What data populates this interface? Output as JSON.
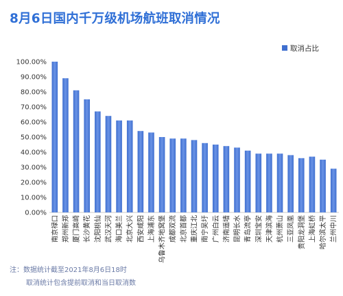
{
  "title": "8月6日国内千万级机场航班取消情况",
  "notes": [
    "注：数据统计截至2021年8月6日18时",
    "取消统计包含提前取消和当日取消数"
  ],
  "colors": {
    "title": "#2f6fd6",
    "bar": "#3f6fcf",
    "bar_light": "#6a93e6",
    "axis_text": "#333333",
    "note": "#6a7aa6"
  },
  "chart_data": {
    "type": "bar",
    "title": "8月6日国内千万级机场航班取消情况",
    "xlabel": "",
    "ylabel": "",
    "ylim": [
      0,
      1
    ],
    "yticks": [
      "0.00%",
      "10.00%",
      "20.00%",
      "30.00%",
      "40.00%",
      "50.00%",
      "60.00%",
      "70.00%",
      "80.00%",
      "90.00%",
      "100.00%"
    ],
    "grid": false,
    "legend": {
      "position": "top-right"
    },
    "categories": [
      "南京禄口",
      "郑州新郑",
      "厦门高崎",
      "长沙黄花",
      "沈阳桃仙",
      "武汉天河",
      "海口美兰",
      "北京大兴",
      "西安咸阳",
      "上海浦东",
      "乌鲁木齐地窝堡",
      "成都双流",
      "北京首都",
      "重庆江北",
      "南宁吴圩",
      "广州白云",
      "济南遥墙",
      "昆明长水",
      "青岛流亭",
      "深圳宝安",
      "天津滨海",
      "杭州萧山",
      "三亚凤凰",
      "贵阳龙洞堡",
      "上海虹桥",
      "哈尔滨太平",
      "兰州中川"
    ],
    "series": [
      {
        "name": "取消占比",
        "values": [
          1.0,
          0.89,
          0.81,
          0.75,
          0.67,
          0.64,
          0.61,
          0.61,
          0.54,
          0.53,
          0.5,
          0.49,
          0.49,
          0.48,
          0.46,
          0.45,
          0.44,
          0.43,
          0.41,
          0.39,
          0.39,
          0.39,
          0.38,
          0.36,
          0.37,
          0.35,
          0.29
        ]
      }
    ]
  }
}
